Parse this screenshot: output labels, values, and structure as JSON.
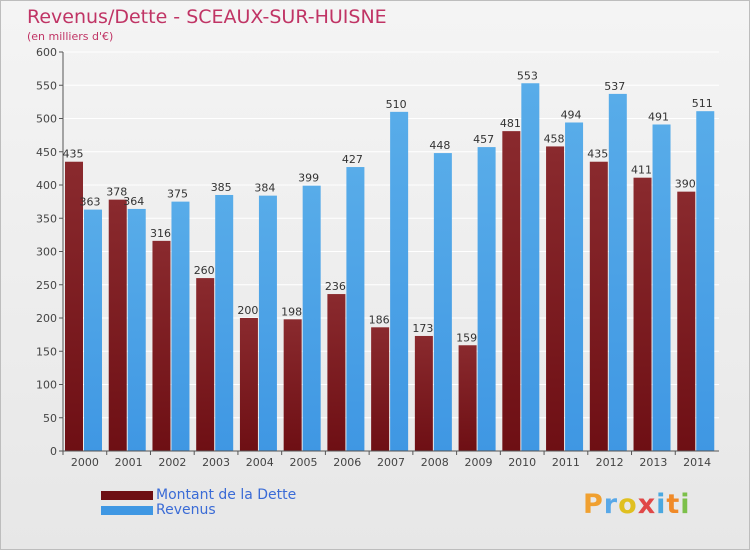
{
  "colors": {
    "debt": "#6e0f14",
    "debt_light": "#8a2a2e",
    "revenue": "#3f97e3",
    "revenue_light": "#58ace9",
    "title": "#c03465",
    "legend_text": "#3a6bd6",
    "grid": "#ffffff"
  },
  "logo": {
    "text": "Proxiti",
    "letter_colors": [
      "#f0a030",
      "#58a8e8",
      "#e0c020",
      "#e04848",
      "#4aa8e0",
      "#f08a28",
      "#7cc04a"
    ]
  },
  "chart_data": {
    "type": "bar",
    "title": "Revenus/Dette - SCEAUX-SUR-HUISNE",
    "subtitle": "(en milliers d'€)",
    "xlabel": "",
    "ylabel": "",
    "ylim": [
      0,
      600
    ],
    "yticks": [
      0,
      50,
      100,
      150,
      200,
      250,
      300,
      350,
      400,
      450,
      500,
      550,
      600
    ],
    "grid": true,
    "legend_position": "bottom-left",
    "categories": [
      "2000",
      "2001",
      "2002",
      "2003",
      "2004",
      "2005",
      "2006",
      "2007",
      "2008",
      "2009",
      "2010",
      "2011",
      "2012",
      "2013",
      "2014"
    ],
    "series": [
      {
        "name": "Montant de la Dette",
        "values": [
          435,
          378,
          316,
          260,
          200,
          198,
          236,
          186,
          173,
          159,
          481,
          458,
          435,
          411,
          390
        ]
      },
      {
        "name": "Revenus",
        "values": [
          363,
          364,
          375,
          385,
          384,
          399,
          427,
          510,
          448,
          457,
          553,
          494,
          537,
          491,
          511
        ]
      }
    ]
  }
}
